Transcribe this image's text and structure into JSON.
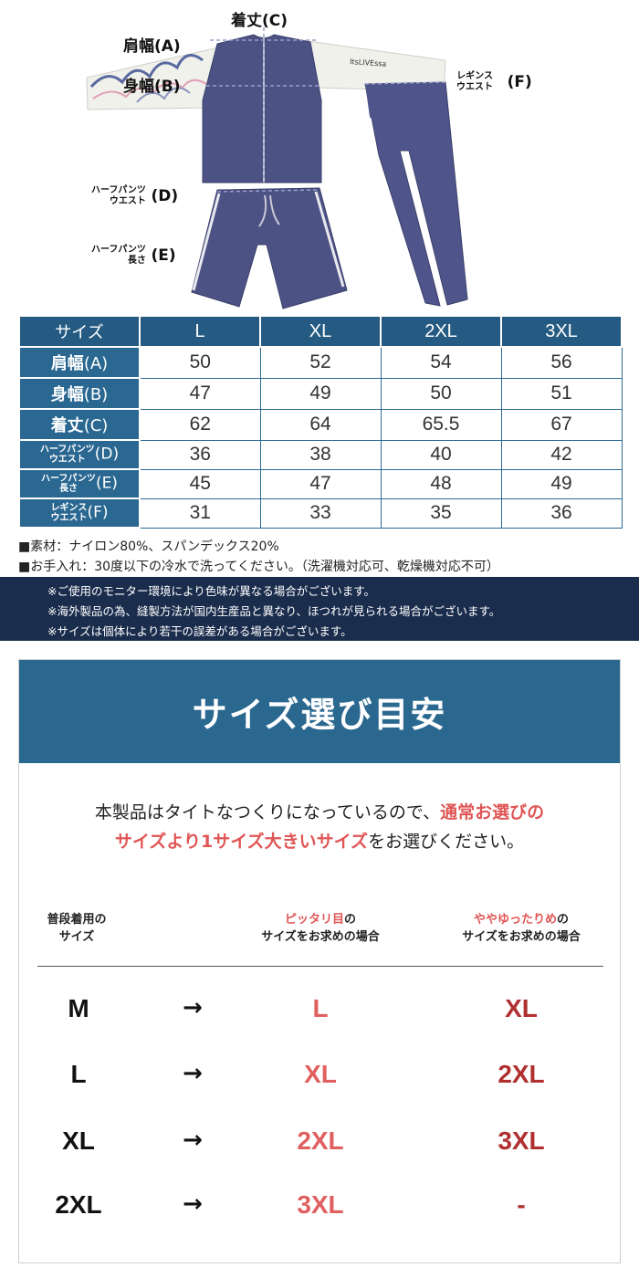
{
  "diagram": {
    "labels": {
      "length": {
        "text": "着丈",
        "letter": "(C)"
      },
      "shoulder": {
        "text": "肩幅",
        "letter": "(A)"
      },
      "body": {
        "text": "身幅",
        "letter": "(B)"
      },
      "leggings": {
        "line1": "レギンス",
        "line2": "ウエスト",
        "letter": "(F)"
      },
      "half_waist": {
        "line1": "ハーフパンツ",
        "line2": "ウエスト",
        "letter": "(D)"
      },
      "half_length": {
        "line1": "ハーフパンツ",
        "line2": "長さ",
        "letter": "(E)"
      }
    },
    "sleeve_text": "ItsLIVEssa"
  },
  "size_table": {
    "header": [
      "サイズ",
      "L",
      "XL",
      "2XL",
      "3XL"
    ],
    "rows": [
      {
        "label": "肩幅",
        "letter": "(A)",
        "values": [
          "50",
          "52",
          "54",
          "56"
        ]
      },
      {
        "label": "身幅",
        "letter": "(B)",
        "values": [
          "47",
          "49",
          "50",
          "51"
        ]
      },
      {
        "label": "着丈",
        "letter": "(C)",
        "values": [
          "62",
          "64",
          "65.5",
          "67"
        ]
      },
      {
        "label1": "ハーフパンツ",
        "label2": "ウエスト",
        "letter": "(D)",
        "values": [
          "36",
          "38",
          "40",
          "42"
        ]
      },
      {
        "label1": "ハーフパンツ",
        "label2": "長さ",
        "letter": "(E)",
        "values": [
          "45",
          "47",
          "48",
          "49"
        ]
      },
      {
        "label1": "レギンス",
        "label2": "ウエスト",
        "letter": "(F)",
        "values": [
          "31",
          "33",
          "35",
          "36"
        ]
      }
    ]
  },
  "notes": {
    "material": "■素材：ナイロン80%、スパンデックス20%",
    "care": "■お手入れ：30度以下の冷水で洗ってください。（洗濯機対応可、乾燥機対応不可）",
    "dark": [
      "※ご使用のモニター環境により色味が異なる場合がございます。",
      "※海外製品の為、縫製方法が国内生産品と異なり、ほつれが見られる場合がございます。",
      "※サイズは個体により若干の誤差がある場合がございます。"
    ]
  },
  "guide": {
    "title": "サイズ選び目安",
    "intro": {
      "part1": "本製品はタイトなつくりになっているので、",
      "red1": "通常お選びの",
      "red2": "サイズより1サイズ大きいサイズ",
      "part2": "をお選びください。"
    },
    "col_headers": {
      "base_line1": "普段着用の",
      "base_line2": "サイズ",
      "fit_red": "ピッタリ目",
      "fit_rest": "の",
      "fit_line2": "サイズをお求めの場合",
      "loose_red": "ややゆったりめ",
      "loose_rest": "の",
      "loose_line2": "サイズをお求めの場合"
    },
    "arrow": "→",
    "rows": [
      {
        "base": "M",
        "fit": "L",
        "loose": "XL"
      },
      {
        "base": "L",
        "fit": "XL",
        "loose": "2XL"
      },
      {
        "base": "XL",
        "fit": "2XL",
        "loose": "3XL"
      },
      {
        "base": "2XL",
        "fit": "3XL",
        "loose": "-"
      }
    ]
  },
  "colors": {
    "table_blue": "#2a6892",
    "navy_note": "#1b2d4d",
    "accent_red": "#e05656",
    "garment": "#4a5082"
  }
}
